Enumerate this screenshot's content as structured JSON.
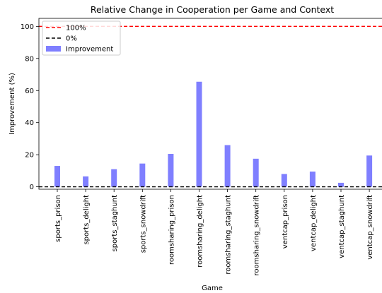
{
  "chart_data": {
    "type": "bar",
    "title": "Relative Change in Cooperation per Game and Context",
    "xlabel": "Game",
    "ylabel": "Improvement (%)",
    "ylim": [
      0,
      105
    ],
    "yticks": [
      0,
      20,
      40,
      60,
      80,
      100
    ],
    "categories": [
      "sports_prison",
      "sports_delight",
      "sports_staghunt",
      "sports_snowdrift",
      "roomsharing_prison",
      "roomsharing_delight",
      "roomsharing_staghunt",
      "roomsharing_snowdrift",
      "ventcap_prison",
      "ventcap_delight",
      "ventcap_staghunt",
      "ventcap_snowdrift"
    ],
    "series": [
      {
        "name": "Improvement",
        "color": "#7f7fff",
        "values": [
          13,
          6.5,
          11,
          14.5,
          20.5,
          65.5,
          26,
          17.5,
          8,
          9.5,
          2.5,
          19.5
        ]
      }
    ],
    "reference_lines": [
      {
        "name": "100%",
        "value": 100,
        "color": "#ff0000",
        "style": "dashed"
      },
      {
        "name": "0%",
        "value": 0,
        "color": "#000000",
        "style": "dashed"
      }
    ],
    "legend": {
      "position": "top-left",
      "entries": [
        "100%",
        "0%",
        "Improvement"
      ]
    },
    "grid": false
  }
}
